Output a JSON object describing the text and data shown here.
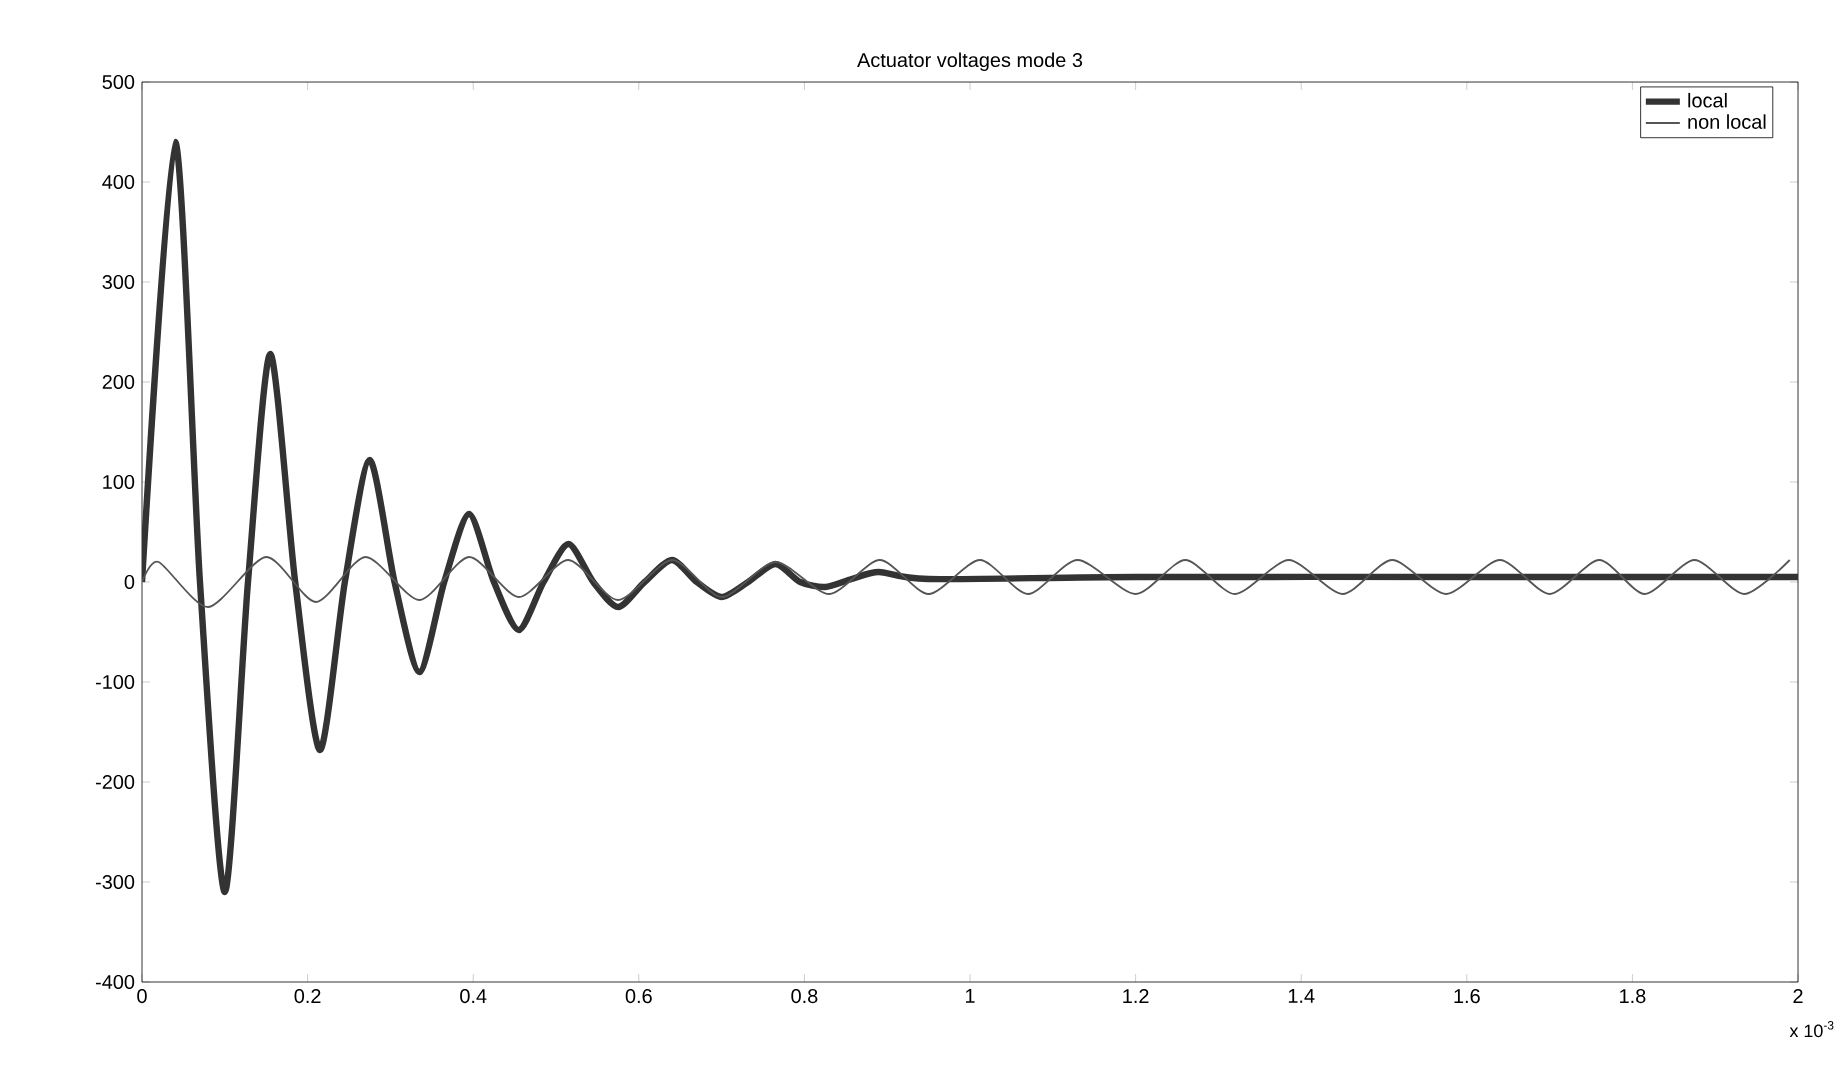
{
  "chart_data": {
    "type": "line",
    "title": "Actuator voltages mode 3",
    "annotations": [
      "x 10$^{-3}$"
    ],
    "xlim": [
      0,
      2
    ],
    "xticks": [
      0,
      0.2,
      0.4,
      0.6,
      0.8,
      1,
      1.2,
      1.4,
      1.6,
      1.8,
      2
    ],
    "ylim": [
      -400,
      500
    ],
    "yticks": [
      -400,
      -300,
      -200,
      -100,
      0,
      100,
      200,
      300,
      400,
      500
    ],
    "grid": false,
    "legend": "top right",
    "marker": "none",
    "line_style": "solid",
    "series": [
      {
        "name": "local",
        "color": "#333333",
        "x": [
          0,
          0.04,
          0.07,
          0.1,
          0.128,
          0.155,
          0.185,
          0.215,
          0.245,
          0.275,
          0.305,
          0.335,
          0.365,
          0.395,
          0.425,
          0.455,
          0.485,
          0.515,
          0.545,
          0.575,
          0.607,
          0.64,
          0.67,
          0.7,
          0.732,
          0.765,
          0.795,
          0.825,
          0.857,
          0.89,
          0.95,
          1.2,
          1.6,
          2
        ],
        "values": [
          0,
          440,
          0,
          -310,
          0,
          228,
          0,
          -168,
          0,
          122,
          0,
          -90,
          0,
          68,
          0,
          -48,
          0,
          38,
          0,
          -25,
          0,
          22,
          0,
          -15,
          0,
          18,
          0,
          -5,
          3,
          10,
          3,
          5,
          5,
          5
        ]
      },
      {
        "name": "non local",
        "color": "#555555",
        "x": [
          0,
          0.02,
          0.08,
          0.15,
          0.21,
          0.27,
          0.335,
          0.395,
          0.455,
          0.515,
          0.575,
          0.64,
          0.7,
          0.765,
          0.83,
          0.891,
          0.95,
          1.012,
          1.07,
          1.13,
          1.2,
          1.26,
          1.32,
          1.385,
          1.45,
          1.51,
          1.575,
          1.64,
          1.7,
          1.76,
          1.815,
          1.875,
          1.935,
          1.99
        ],
        "values": [
          0,
          20,
          -25,
          25,
          -20,
          25,
          -18,
          25,
          -15,
          22,
          -18,
          22,
          -15,
          20,
          -12,
          22,
          -12,
          22,
          -12,
          22,
          -12,
          22,
          -12,
          22,
          -12,
          22,
          -12,
          22,
          -12,
          22,
          -12,
          22,
          -12,
          22
        ]
      }
    ]
  }
}
